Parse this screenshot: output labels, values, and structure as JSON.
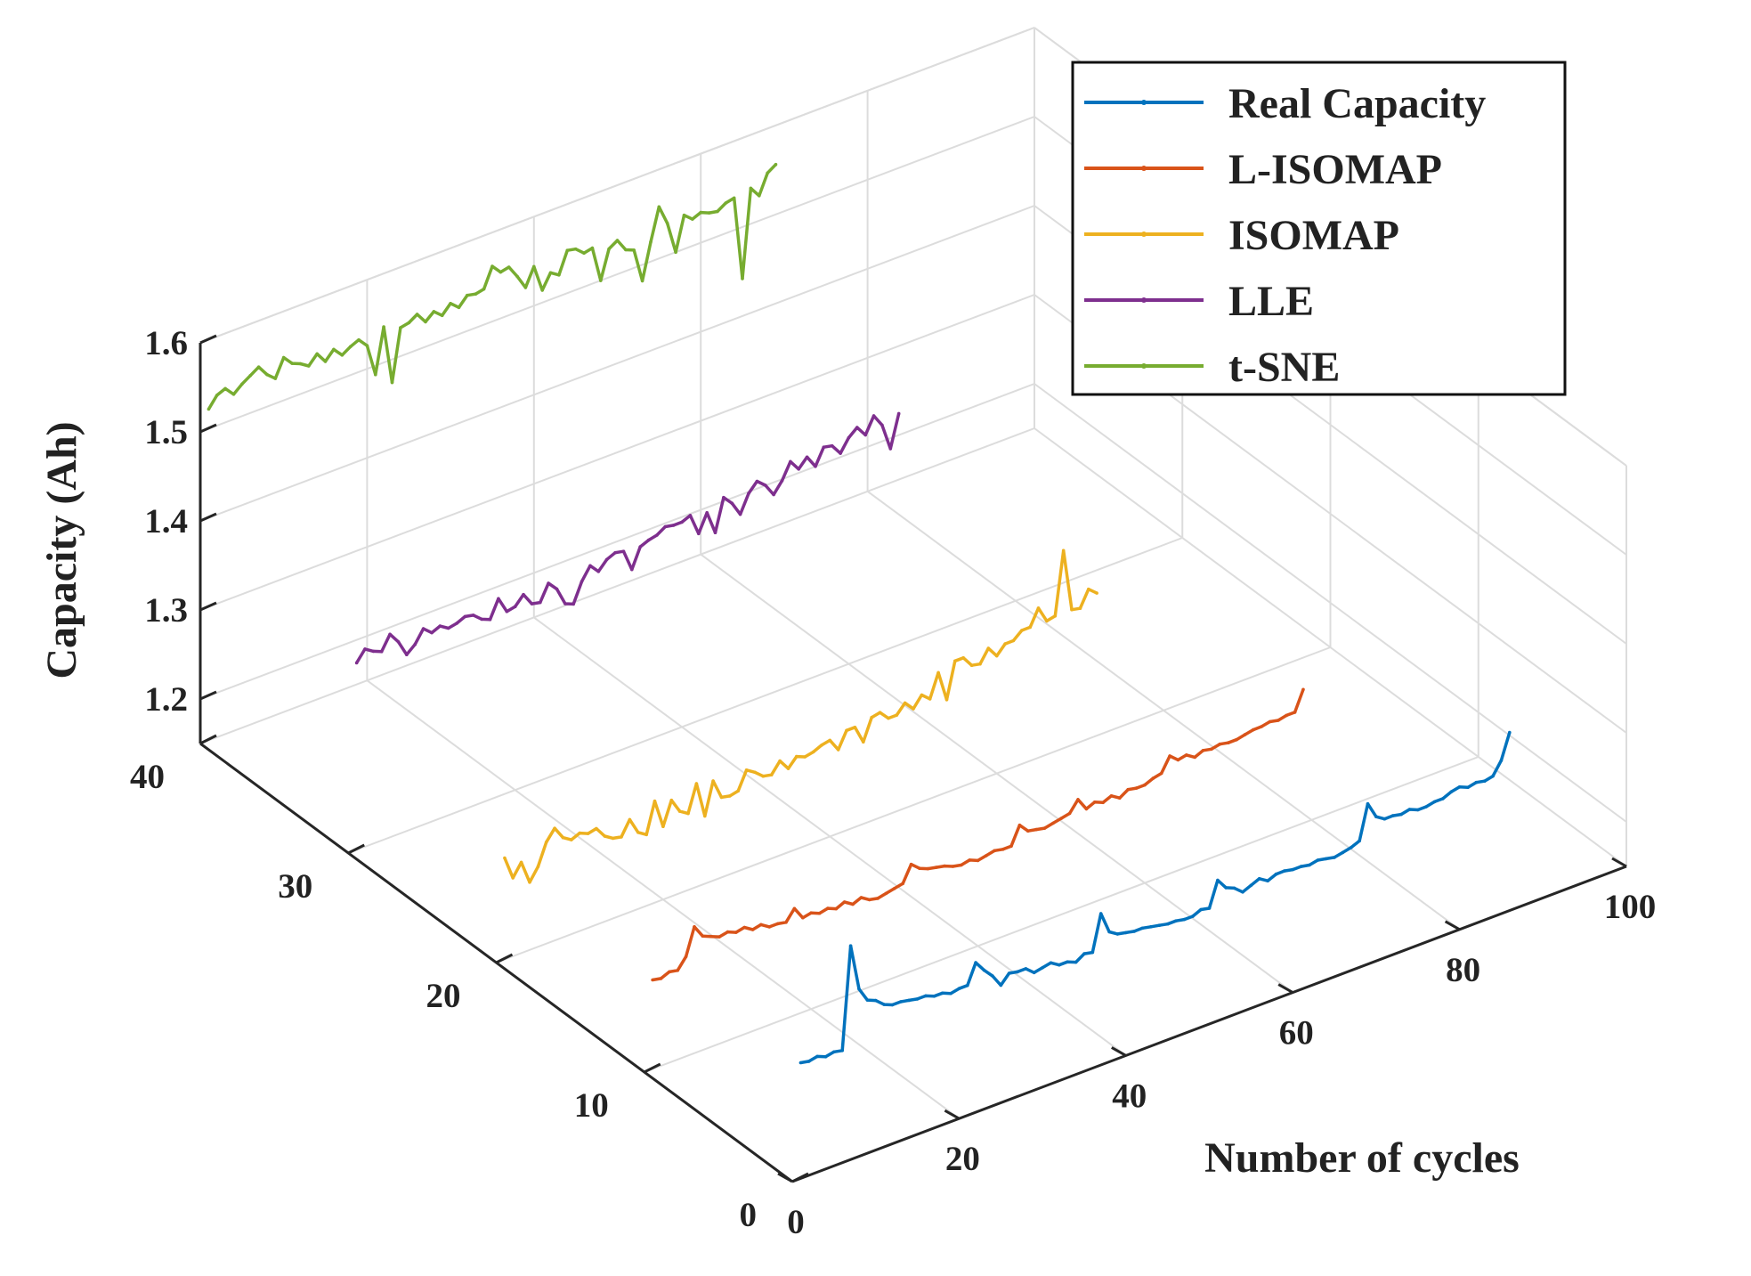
{
  "chart_data": {
    "type": "line",
    "view": "3d",
    "title": "",
    "xlabel": "Number of cycles",
    "ylabel": "",
    "zlabel": "Capacity (Ah)",
    "xlim": [
      0,
      100
    ],
    "ylim": [
      0,
      40
    ],
    "zlim": [
      1.15,
      1.6
    ],
    "xticks": [
      0,
      20,
      40,
      60,
      80,
      100
    ],
    "yticks": [
      0,
      10,
      20,
      30,
      40
    ],
    "zticks": [
      1.2,
      1.3,
      1.4,
      1.5,
      1.6
    ],
    "grid": true,
    "legend_position": "top-right",
    "series": [
      {
        "name": "Real Capacity",
        "color": "#0072BD",
        "depth": 0,
        "values": [
          1.28,
          1.278,
          1.28,
          1.276,
          1.278,
          1.276,
          1.39,
          1.338,
          1.322,
          1.318,
          1.31,
          1.306,
          1.306,
          1.304,
          1.302,
          1.302,
          1.298,
          1.298,
          1.294,
          1.296,
          1.296,
          1.318,
          1.306,
          1.296,
          1.282,
          1.292,
          1.29,
          1.29,
          1.282,
          1.284,
          1.286,
          1.28,
          1.28,
          1.276,
          1.282,
          1.28,
          1.32,
          1.296,
          1.29,
          1.288,
          1.286,
          1.286,
          1.284,
          1.282,
          1.28,
          1.28,
          1.278,
          1.278,
          1.282,
          1.28,
          1.308,
          1.296,
          1.292,
          1.284,
          1.288,
          1.292,
          1.286,
          1.29,
          1.29,
          1.288,
          1.288,
          1.286,
          1.288,
          1.286,
          1.284,
          1.286,
          1.288,
          1.292,
          1.33,
          1.312,
          1.306,
          1.306,
          1.304,
          1.306,
          1.302,
          1.302,
          1.304,
          1.304,
          1.308,
          1.31,
          1.306,
          1.308,
          1.306,
          1.308,
          1.322,
          1.35
        ]
      },
      {
        "name": "L-ISOMAP",
        "color": "#D95319",
        "depth": 10,
        "values": [
          1.25,
          1.248,
          1.252,
          1.25,
          1.262,
          1.292,
          1.278,
          1.274,
          1.27,
          1.272,
          1.268,
          1.27,
          1.264,
          1.266,
          1.26,
          1.26,
          1.258,
          1.27,
          1.256,
          1.258,
          1.254,
          1.256,
          1.252,
          1.256,
          1.25,
          1.254,
          1.248,
          1.246,
          1.248,
          1.25,
          1.252,
          1.27,
          1.262,
          1.258,
          1.256,
          1.254,
          1.25,
          1.248,
          1.25,
          1.246,
          1.248,
          1.25,
          1.248,
          1.248,
          1.268,
          1.258,
          1.256,
          1.254,
          1.256,
          1.258,
          1.26,
          1.272,
          1.258,
          1.262,
          1.258,
          1.262,
          1.256,
          1.262,
          1.26,
          1.26,
          1.264,
          1.266,
          1.282,
          1.274,
          1.276,
          1.27,
          1.274,
          1.272,
          1.274,
          1.272,
          1.272,
          1.274,
          1.276,
          1.276,
          1.278,
          1.276,
          1.278,
          1.278,
          1.3
        ]
      },
      {
        "name": "ISOMAP",
        "color": "#EDB120",
        "depth": 20,
        "values": [
          1.264,
          1.238,
          1.252,
          1.226,
          1.24,
          1.264,
          1.276,
          1.262,
          1.256,
          1.26,
          1.256,
          1.258,
          1.246,
          1.24,
          1.238,
          1.254,
          1.236,
          1.23,
          1.264,
          1.232,
          1.258,
          1.242,
          1.236,
          1.266,
          1.226,
          1.262,
          1.24,
          1.238,
          1.24,
          1.26,
          1.254,
          1.246,
          1.244,
          1.256,
          1.244,
          1.254,
          1.25,
          1.252,
          1.256,
          1.258,
          1.244,
          1.262,
          1.262,
          1.242,
          1.266,
          1.268,
          1.258,
          1.258,
          1.268,
          1.258,
          1.27,
          1.262,
          1.288,
          1.254,
          1.294,
          1.294,
          1.282,
          1.28,
          1.294,
          1.282,
          1.292,
          1.292,
          1.3,
          1.3,
          1.318,
          1.3,
          1.302,
          1.372,
          1.302,
          1.3,
          1.318,
          1.31
        ]
      },
      {
        "name": "LLE",
        "color": "#7E2F8E",
        "depth": 30,
        "values": [
          1.36,
          1.372,
          1.366,
          1.362,
          1.378,
          1.366,
          1.348,
          1.356,
          1.37,
          1.362,
          1.366,
          1.36,
          1.362,
          1.366,
          1.364,
          1.356,
          1.352,
          1.372,
          1.354,
          1.356,
          1.366,
          1.352,
          1.35,
          1.368,
          1.358,
          1.338,
          1.334,
          1.356,
          1.37,
          1.36,
          1.37,
          1.374,
          1.372,
          1.348,
          1.37,
          1.374,
          1.376,
          1.382,
          1.38,
          1.38,
          1.384,
          1.36,
          1.38,
          1.354,
          1.39,
          1.38,
          1.364,
          1.384,
          1.394,
          1.386,
          1.372,
          1.384,
          1.402,
          1.39,
          1.4,
          1.386,
          1.404,
          1.402,
          1.39,
          1.404,
          1.412,
          1.4,
          1.418,
          1.404,
          1.374,
          1.41
        ]
      },
      {
        "name": "t-SNE",
        "color": "#77AC30",
        "depth": 40,
        "values": [
          1.522,
          1.534,
          1.538,
          1.528,
          1.536,
          1.542,
          1.548,
          1.536,
          1.528,
          1.548,
          1.538,
          1.534,
          1.528,
          1.538,
          1.526,
          1.536,
          1.526,
          1.532,
          1.536,
          1.526,
          1.49,
          1.54,
          1.474,
          1.532,
          1.534,
          1.54,
          1.528,
          1.536,
          1.528,
          1.538,
          1.53,
          1.54,
          1.538,
          1.54,
          1.562,
          1.552,
          1.554,
          1.54,
          1.524,
          1.544,
          1.514,
          1.53,
          1.524,
          1.548,
          1.546,
          1.538,
          1.54,
          1.5,
          1.532,
          1.538,
          1.524,
          1.52,
          1.482,
          1.522,
          1.558,
          1.536,
          1.5,
          1.538,
          1.53,
          1.534,
          1.53,
          1.528,
          1.534,
          1.536,
          1.442,
          1.54,
          1.528,
          1.55,
          1.556
        ]
      }
    ]
  }
}
